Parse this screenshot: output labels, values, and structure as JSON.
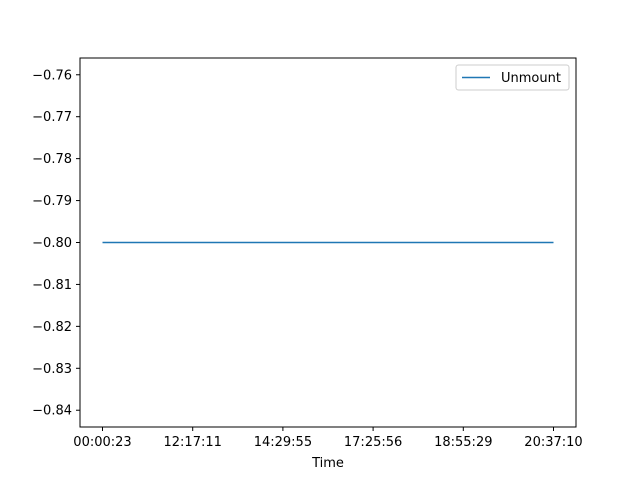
{
  "chart_data": {
    "type": "line",
    "title": "",
    "xlabel": "Time",
    "ylabel": "",
    "x_tick_labels": [
      "00:00:23",
      "12:17:11",
      "14:29:55",
      "17:25:56",
      "18:55:29",
      "20:37:10"
    ],
    "y_ticks": [
      -0.76,
      -0.77,
      -0.78,
      -0.79,
      -0.8,
      -0.81,
      -0.82,
      -0.83,
      -0.84
    ],
    "ylim": [
      -0.844,
      -0.756
    ],
    "grid": false,
    "legend_position": "top-right",
    "series": [
      {
        "name": "Unmount",
        "color": "#1f77b4",
        "x": [
          "00:00:23",
          "12:17:11",
          "14:29:55",
          "17:25:56",
          "18:55:29",
          "20:37:10"
        ],
        "values": [
          -0.8,
          -0.8,
          -0.8,
          -0.8,
          -0.8,
          -0.8
        ]
      }
    ]
  }
}
